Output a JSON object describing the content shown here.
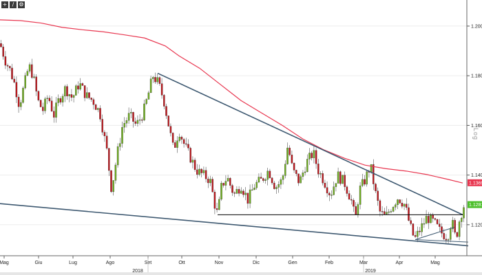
{
  "toolbar": {
    "icons": [
      {
        "name": "crosshair-icon",
        "glyph": "+"
      },
      {
        "name": "draw-line-icon",
        "glyph": "/"
      },
      {
        "name": "gear-icon",
        "glyph": "⚙"
      }
    ]
  },
  "chart_data": {
    "type": "candlestick",
    "scale_label": "Log",
    "y_ticks": [
      "1.2000",
      "1.1800",
      "1.1600",
      "1.1400",
      "1.1200"
    ],
    "y_tick_values": [
      1.2,
      1.18,
      1.16,
      1.14,
      1.12
    ],
    "ylim": [
      1.1075,
      1.2105
    ],
    "x_ticks": [
      "Mag",
      "Giu",
      "Lug",
      "Ago",
      "Set",
      "Ott",
      "Nov",
      "Dic",
      "Gen",
      "Feb",
      "Mar",
      "Apr",
      "Mag"
    ],
    "year_labels": [
      "2018",
      "2019"
    ],
    "tags": [
      {
        "label": "1.1369",
        "value": 1.1369,
        "color": "#e8364f"
      },
      {
        "label": "1.1281",
        "value": 1.1281,
        "color": "#4cbf2a"
      }
    ],
    "ma_color": "#e8364f",
    "up_color": "#6fae1f",
    "down_color": "#c0161c",
    "trend_color": "#3d5870",
    "moving_average": [
      [
        0,
        1.2025
      ],
      [
        30,
        1.2022
      ],
      [
        60,
        1.2012
      ],
      [
        90,
        1.1995
      ],
      [
        120,
        1.1985
      ],
      [
        150,
        1.1977
      ],
      [
        180,
        1.1965
      ],
      [
        210,
        1.1952
      ],
      [
        240,
        1.192
      ],
      [
        260,
        1.188
      ],
      [
        290,
        1.183
      ],
      [
        320,
        1.1765
      ],
      [
        350,
        1.17
      ],
      [
        380,
        1.165
      ],
      [
        410,
        1.16
      ],
      [
        440,
        1.1545
      ],
      [
        470,
        1.1502
      ],
      [
        500,
        1.1468
      ],
      [
        530,
        1.144
      ],
      [
        560,
        1.1426
      ],
      [
        590,
        1.1416
      ],
      [
        620,
        1.1402
      ],
      [
        650,
        1.1383
      ],
      [
        672,
        1.1368
      ]
    ],
    "price_path": [
      [
        0,
        1.193
      ],
      [
        8,
        1.186
      ],
      [
        15,
        1.182
      ],
      [
        22,
        1.176
      ],
      [
        28,
        1.168
      ],
      [
        35,
        1.176
      ],
      [
        42,
        1.184
      ],
      [
        48,
        1.18
      ],
      [
        55,
        1.17
      ],
      [
        62,
        1.166
      ],
      [
        70,
        1.172
      ],
      [
        78,
        1.164
      ],
      [
        85,
        1.17
      ],
      [
        95,
        1.175
      ],
      [
        105,
        1.171
      ],
      [
        115,
        1.177
      ],
      [
        125,
        1.172
      ],
      [
        135,
        1.17
      ],
      [
        145,
        1.165
      ],
      [
        155,
        1.15
      ],
      [
        162,
        1.134
      ],
      [
        170,
        1.148
      ],
      [
        178,
        1.16
      ],
      [
        188,
        1.164
      ],
      [
        198,
        1.16
      ],
      [
        208,
        1.165
      ],
      [
        215,
        1.172
      ],
      [
        222,
        1.18
      ],
      [
        230,
        1.177
      ],
      [
        238,
        1.17
      ],
      [
        245,
        1.16
      ],
      [
        252,
        1.15
      ],
      [
        260,
        1.158
      ],
      [
        268,
        1.152
      ],
      [
        275,
        1.148
      ],
      [
        285,
        1.142
      ],
      [
        295,
        1.14
      ],
      [
        305,
        1.138
      ],
      [
        312,
        1.128
      ],
      [
        316,
        1.124
      ],
      [
        322,
        1.136
      ],
      [
        330,
        1.139
      ],
      [
        340,
        1.132
      ],
      [
        350,
        1.136
      ],
      [
        360,
        1.13
      ],
      [
        370,
        1.136
      ],
      [
        380,
        1.138
      ],
      [
        390,
        1.142
      ],
      [
        400,
        1.135
      ],
      [
        410,
        1.138
      ],
      [
        418,
        1.152
      ],
      [
        425,
        1.142
      ],
      [
        435,
        1.137
      ],
      [
        445,
        1.145
      ],
      [
        455,
        1.149
      ],
      [
        462,
        1.142
      ],
      [
        470,
        1.138
      ],
      [
        480,
        1.132
      ],
      [
        490,
        1.14
      ],
      [
        500,
        1.137
      ],
      [
        510,
        1.13
      ],
      [
        516,
        1.122
      ],
      [
        522,
        1.134
      ],
      [
        530,
        1.138
      ],
      [
        538,
        1.144
      ],
      [
        545,
        1.133
      ],
      [
        552,
        1.125
      ],
      [
        560,
        1.123
      ],
      [
        568,
        1.127
      ],
      [
        578,
        1.131
      ],
      [
        588,
        1.128
      ],
      [
        595,
        1.12
      ],
      [
        602,
        1.114
      ],
      [
        610,
        1.118
      ],
      [
        620,
        1.123
      ],
      [
        630,
        1.121
      ],
      [
        640,
        1.117
      ],
      [
        650,
        1.115
      ],
      [
        656,
        1.122
      ],
      [
        662,
        1.114
      ],
      [
        668,
        1.123
      ],
      [
        674,
        1.128
      ]
    ],
    "trendlines": [
      {
        "name": "descending-resistance",
        "points": [
          [
            229,
            1.181
          ],
          [
            672,
            1.124
          ]
        ]
      },
      {
        "name": "long-term-support",
        "points": [
          [
            0,
            1.1285
          ],
          [
            680,
            1.1115
          ]
        ]
      },
      {
        "name": "horizontal-support",
        "points": [
          [
            316,
            1.124
          ],
          [
            672,
            1.124
          ]
        ]
      },
      {
        "name": "short-rising-line",
        "points": [
          [
            603,
            1.114
          ],
          [
            660,
            1.119
          ]
        ]
      },
      {
        "name": "short-flat-line",
        "points": [
          [
            603,
            1.114
          ],
          [
            680,
            1.113
          ]
        ]
      }
    ]
  }
}
